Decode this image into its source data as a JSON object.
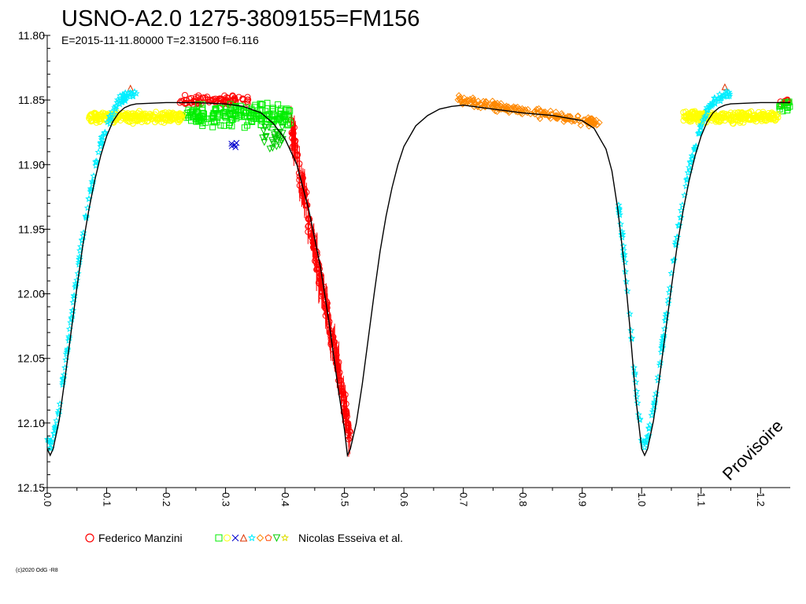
{
  "chart_data": {
    "type": "scatter",
    "title": "USNO-A2.0 1275-3809155=FM156",
    "subtitle": "E=2015-11-11.80000    T=2.31500    f=6.116",
    "xlabel": "",
    "ylabel": "",
    "xlim": [
      0.0,
      1.25
    ],
    "ylim": [
      12.15,
      11.8
    ],
    "y_inverted": true,
    "grid": false,
    "x_ticks": [
      "0.0",
      "0.1",
      "0.2",
      "0.3",
      "0.4",
      "0.5",
      "0.6",
      "0.7",
      "0.8",
      "0.9",
      "1.0",
      "1.1",
      "1.2"
    ],
    "y_ticks": [
      "11.80",
      "11.85",
      "11.90",
      "11.95",
      "12.00",
      "12.05",
      "12.10",
      "12.15"
    ],
    "model_curve": {
      "name": "",
      "color": "#000000",
      "points": [
        [
          0.0,
          12.12
        ],
        [
          0.005,
          12.125
        ],
        [
          0.01,
          12.12
        ],
        [
          0.02,
          12.098
        ],
        [
          0.03,
          12.065
        ],
        [
          0.04,
          12.03
        ],
        [
          0.05,
          11.995
        ],
        [
          0.06,
          11.962
        ],
        [
          0.07,
          11.935
        ],
        [
          0.08,
          11.912
        ],
        [
          0.09,
          11.893
        ],
        [
          0.1,
          11.878
        ],
        [
          0.11,
          11.867
        ],
        [
          0.12,
          11.86
        ],
        [
          0.13,
          11.856
        ],
        [
          0.14,
          11.854
        ],
        [
          0.15,
          11.853
        ],
        [
          0.2,
          11.852
        ],
        [
          0.25,
          11.852
        ],
        [
          0.3,
          11.853
        ],
        [
          0.33,
          11.855
        ],
        [
          0.36,
          11.86
        ],
        [
          0.38,
          11.868
        ],
        [
          0.4,
          11.88
        ],
        [
          0.42,
          11.9
        ],
        [
          0.44,
          11.935
        ],
        [
          0.46,
          11.98
        ],
        [
          0.475,
          12.025
        ],
        [
          0.49,
          12.075
        ],
        [
          0.5,
          12.105
        ],
        [
          0.505,
          12.125
        ],
        [
          0.51,
          12.12
        ],
        [
          0.52,
          12.1
        ],
        [
          0.53,
          12.07
        ],
        [
          0.54,
          12.035
        ],
        [
          0.55,
          12.0
        ],
        [
          0.56,
          11.967
        ],
        [
          0.57,
          11.94
        ],
        [
          0.58,
          11.918
        ],
        [
          0.59,
          11.9
        ],
        [
          0.6,
          11.886
        ],
        [
          0.62,
          11.87
        ],
        [
          0.64,
          11.862
        ],
        [
          0.66,
          11.857
        ],
        [
          0.68,
          11.855
        ],
        [
          0.7,
          11.854
        ],
        [
          0.75,
          11.857
        ],
        [
          0.8,
          11.86
        ],
        [
          0.85,
          11.862
        ],
        [
          0.9,
          11.866
        ],
        [
          0.92,
          11.872
        ],
        [
          0.94,
          11.888
        ],
        [
          0.95,
          11.905
        ],
        [
          0.96,
          11.935
        ],
        [
          0.97,
          11.975
        ],
        [
          0.98,
          12.025
        ],
        [
          0.99,
          12.08
        ],
        [
          1.0,
          12.12
        ],
        [
          1.005,
          12.125
        ],
        [
          1.01,
          12.12
        ],
        [
          1.02,
          12.098
        ],
        [
          1.03,
          12.065
        ],
        [
          1.04,
          12.03
        ],
        [
          1.05,
          11.995
        ],
        [
          1.06,
          11.962
        ],
        [
          1.07,
          11.935
        ],
        [
          1.08,
          11.912
        ],
        [
          1.09,
          11.893
        ],
        [
          1.1,
          11.878
        ],
        [
          1.11,
          11.867
        ],
        [
          1.12,
          11.86
        ],
        [
          1.13,
          11.856
        ],
        [
          1.14,
          11.854
        ],
        [
          1.15,
          11.853
        ],
        [
          1.2,
          11.852
        ],
        [
          1.25,
          11.852
        ]
      ]
    },
    "series": [
      {
        "name": "Federico Manzini",
        "color": "#ff0000",
        "marker": "circle",
        "ranges": [
          {
            "x": [
              0.22,
              0.34
            ],
            "y": 11.85,
            "spread": 0.005,
            "n": 90
          },
          {
            "x": [
              0.41,
              0.51
            ],
            "y_start": 11.87,
            "y_end": 12.11,
            "spread": 0.015,
            "n": 160
          },
          {
            "x": [
              1.23,
              1.25
            ],
            "y": 11.852,
            "spread": 0.004,
            "n": 10
          }
        ]
      },
      {
        "name": "Nicolas Esseiva et al.",
        "color": "#00ee00",
        "marker": "square",
        "ranges": [
          {
            "x": [
              0.23,
              0.41
            ],
            "y": 11.862,
            "spread": 0.012,
            "n": 200
          },
          {
            "x": [
              1.23,
              1.25
            ],
            "y": 11.855,
            "spread": 0.005,
            "n": 15
          }
        ]
      },
      {
        "name": "",
        "color": "#ffff00",
        "marker": "circle",
        "ranges": [
          {
            "x": [
              0.07,
              0.23
            ],
            "y": 11.863,
            "spread": 0.006,
            "n": 260
          },
          {
            "x": [
              1.07,
              1.23
            ],
            "y": 11.863,
            "spread": 0.006,
            "n": 260
          }
        ]
      },
      {
        "name": "",
        "color": "#0000cc",
        "marker": "x",
        "ranges": [
          {
            "x": [
              0.31,
              0.32
            ],
            "y": 11.885,
            "spread": 0.005,
            "n": 5
          }
        ]
      },
      {
        "name": "",
        "color": "#dd3300",
        "marker": "triangle",
        "ranges": [
          {
            "x": [
              0.14,
              0.14
            ],
            "y": 11.84,
            "spread": 0.002,
            "n": 1
          },
          {
            "x": [
              1.14,
              1.14
            ],
            "y": 11.84,
            "spread": 0.002,
            "n": 1
          }
        ]
      },
      {
        "name": "",
        "color": "#00eeff",
        "marker": "star",
        "ranges": [
          {
            "x": [
              0.0,
              0.15
            ],
            "curve": true,
            "spread": 0.005,
            "n": 140
          },
          {
            "x": [
              0.96,
              1.15
            ],
            "curve": true,
            "spread": 0.005,
            "n": 160
          }
        ]
      },
      {
        "name": "",
        "color": "#ff8800",
        "marker": "diamond",
        "ranges": [
          {
            "x": [
              0.69,
              0.93
            ],
            "y_start": 11.85,
            "y_end": 11.868,
            "spread": 0.005,
            "n": 200
          }
        ]
      },
      {
        "name": "",
        "color": "#ff4400",
        "marker": "pentagon",
        "ranges": []
      },
      {
        "name": "",
        "color": "#00cc00",
        "marker": "triangle-down",
        "ranges": [
          {
            "x": [
              0.36,
              0.4
            ],
            "y": 11.88,
            "spread": 0.014,
            "n": 30
          }
        ]
      },
      {
        "name": "",
        "color": "#dddd00",
        "marker": "star",
        "ranges": []
      }
    ]
  },
  "legend": {
    "series1_label": "Federico Manzini",
    "series2_label": "Nicolas Esseiva et al."
  },
  "watermark": "Provisoire",
  "copyright": "(c)2020 OdG -R8"
}
